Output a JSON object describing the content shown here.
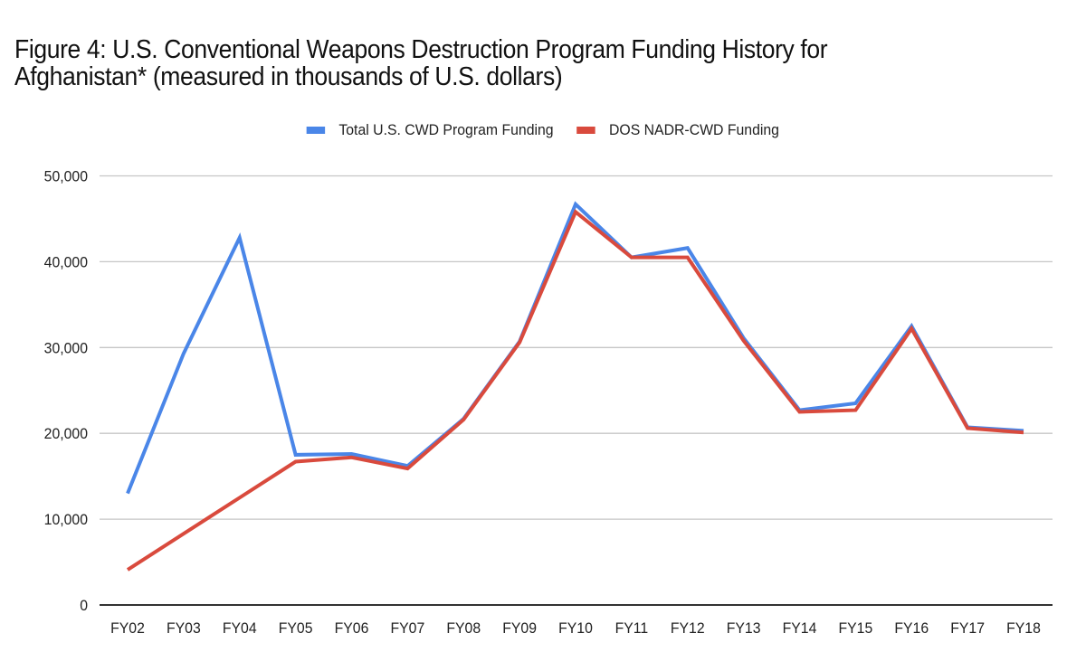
{
  "chart_data": {
    "type": "line",
    "title": "Figure 4: U.S. Conventional Weapons Destruction Program Funding History for Afghanistan* (measured in thousands of U.S. dollars)",
    "title_lines": [
      "Figure 4: U.S. Conventional Weapons Destruction Program Funding History for",
      "Afghanistan* (measured in thousands of U.S. dollars)"
    ],
    "xlabel": "",
    "ylabel": "",
    "categories": [
      "FY02",
      "FY03",
      "FY04",
      "FY05",
      "FY06",
      "FY07",
      "FY08",
      "FY09",
      "FY10",
      "FY11",
      "FY12",
      "FY13",
      "FY14",
      "FY15",
      "FY16",
      "FY17",
      "FY18"
    ],
    "ylim": [
      0,
      50000
    ],
    "yticks": [
      0,
      10000,
      20000,
      30000,
      40000,
      50000
    ],
    "ytick_labels": [
      "0",
      "10,000",
      "20,000",
      "30,000",
      "40,000",
      "50,000"
    ],
    "grid": true,
    "legend_position": "top-center",
    "series": [
      {
        "name": "Total U.S. CWD Program Funding",
        "color": "#4a86e8",
        "values": [
          13000,
          29300,
          42800,
          17500,
          17600,
          16200,
          21700,
          30700,
          46700,
          40500,
          41600,
          31100,
          22700,
          23500,
          32500,
          20700,
          20300
        ]
      },
      {
        "name": "DOS NADR-CWD Funding",
        "color": "#d94a3d",
        "values": [
          4100,
          8300,
          12500,
          16700,
          17200,
          15900,
          21600,
          30600,
          45800,
          40500,
          40500,
          30800,
          22500,
          22700,
          32200,
          20600,
          20100
        ]
      }
    ]
  }
}
